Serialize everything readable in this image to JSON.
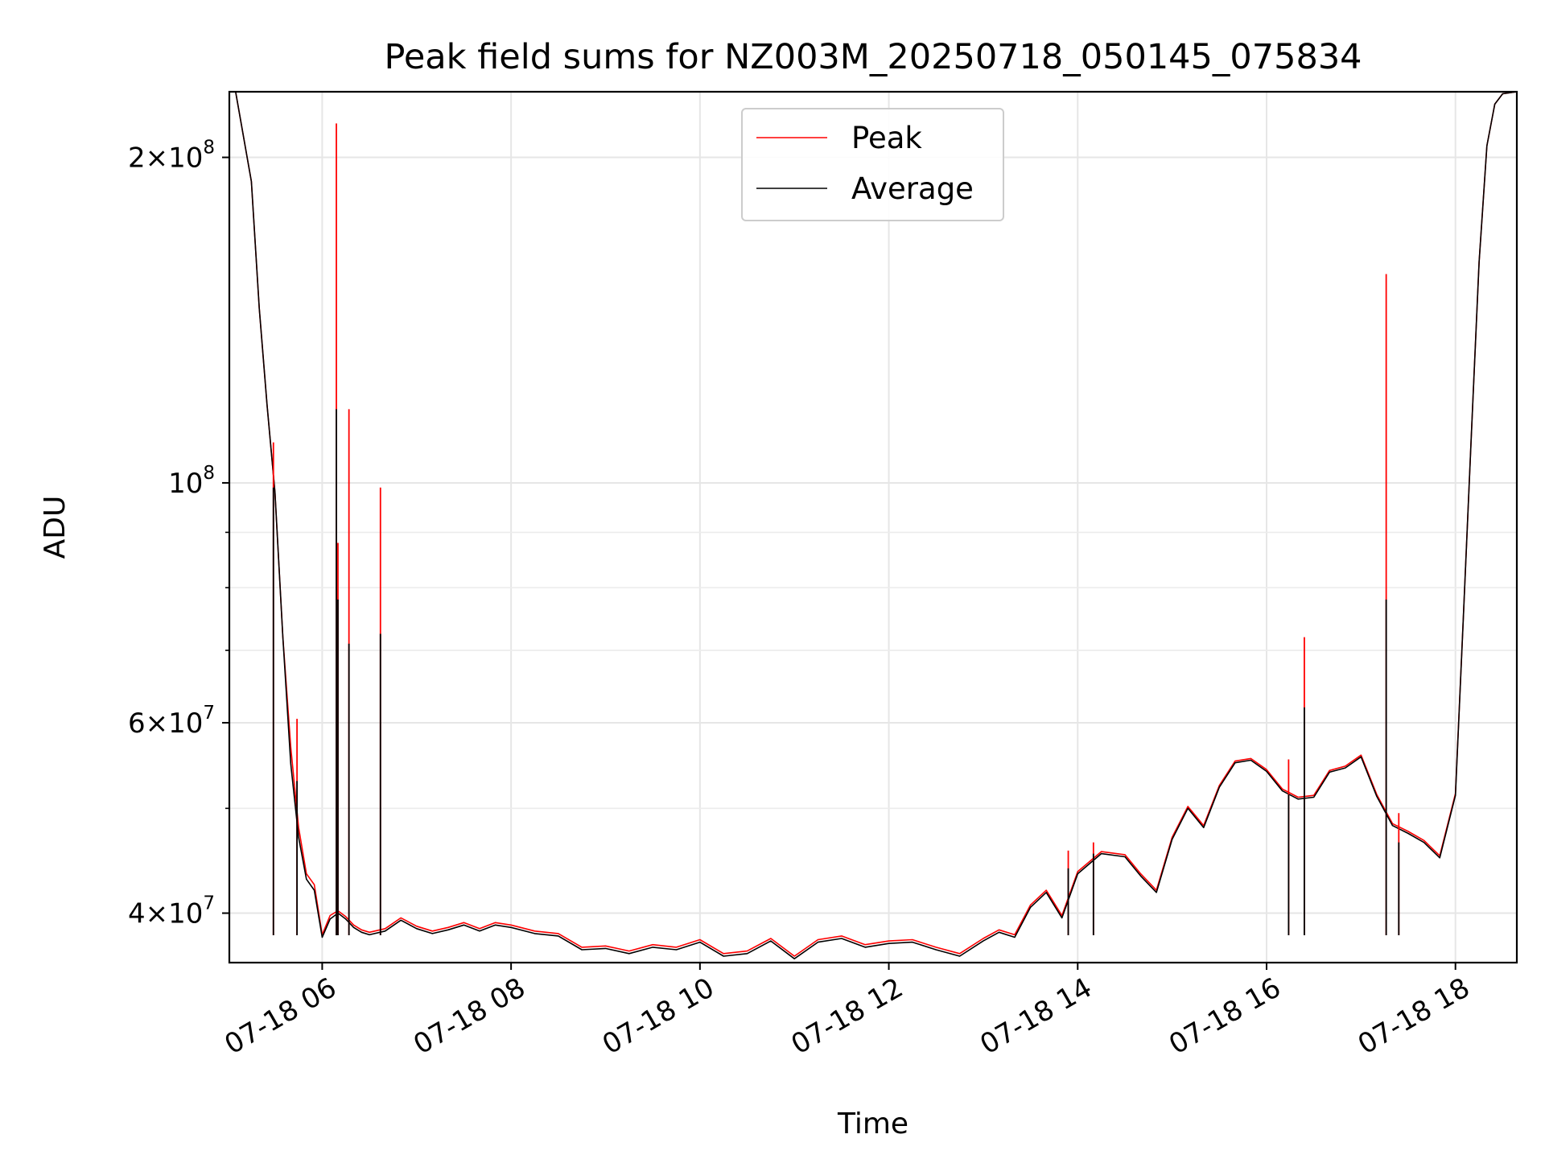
{
  "chart_data": {
    "type": "line",
    "title": "Peak field sums for NZ003M_20250718_050145_075834",
    "xlabel": "Time",
    "ylabel": "ADU",
    "yscale": "log",
    "ylim": [
      36000000,
      230000000
    ],
    "xlim": [
      "07-18 05:01",
      "07-18 18:39"
    ],
    "grid": true,
    "legend_placement": "upper-center",
    "x_tick_labels": [
      "07-18 06",
      "07-18 08",
      "07-18 10",
      "07-18 12",
      "07-18 14",
      "07-18 16",
      "07-18 18"
    ],
    "x_tick_values": [
      "07-18 06:00",
      "07-18 08:00",
      "07-18 10:00",
      "07-18 12:00",
      "07-18 14:00",
      "07-18 16:00",
      "07-18 18:00"
    ],
    "y_major_ticks": [
      {
        "value": 40000000,
        "mantissa": "4",
        "exponent": "7"
      },
      {
        "value": 60000000,
        "mantissa": "6",
        "exponent": "7"
      },
      {
        "value": 100000000,
        "mantissa": "",
        "exponent": "8"
      },
      {
        "value": 200000000,
        "mantissa": "2",
        "exponent": "8"
      }
    ],
    "y_minor_ticks": [
      50000000,
      70000000,
      80000000,
      90000000
    ],
    "x": [
      "07-18 05:01",
      "07-18 05:05",
      "07-18 05:15",
      "07-18 05:20",
      "07-18 05:25",
      "07-18 05:30",
      "07-18 05:35",
      "07-18 05:40",
      "07-18 05:45",
      "07-18 05:50",
      "07-18 05:55",
      "07-18 06:00",
      "07-18 06:05",
      "07-18 06:10",
      "07-18 06:15",
      "07-18 06:20",
      "07-18 06:25",
      "07-18 06:30",
      "07-18 06:40",
      "07-18 06:50",
      "07-18 07:00",
      "07-18 07:10",
      "07-18 07:20",
      "07-18 07:30",
      "07-18 07:40",
      "07-18 07:50",
      "07-18 08:00",
      "07-18 08:15",
      "07-18 08:30",
      "07-18 08:45",
      "07-18 09:00",
      "07-18 09:15",
      "07-18 09:30",
      "07-18 09:45",
      "07-18 10:00",
      "07-18 10:15",
      "07-18 10:30",
      "07-18 10:45",
      "07-18 11:00",
      "07-18 11:15",
      "07-18 11:30",
      "07-18 11:45",
      "07-18 12:00",
      "07-18 12:15",
      "07-18 12:30",
      "07-18 12:45",
      "07-18 13:00",
      "07-18 13:10",
      "07-18 13:20",
      "07-18 13:30",
      "07-18 13:40",
      "07-18 13:50",
      "07-18 14:00",
      "07-18 14:15",
      "07-18 14:30",
      "07-18 14:40",
      "07-18 14:50",
      "07-18 15:00",
      "07-18 15:10",
      "07-18 15:20",
      "07-18 15:30",
      "07-18 15:40",
      "07-18 15:50",
      "07-18 16:00",
      "07-18 16:10",
      "07-18 16:20",
      "07-18 16:30",
      "07-18 16:40",
      "07-18 16:50",
      "07-18 17:00",
      "07-18 17:10",
      "07-18 17:20",
      "07-18 17:30",
      "07-18 17:40",
      "07-18 17:50",
      "07-18 18:00",
      "07-18 18:05",
      "07-18 18:10",
      "07-18 18:15",
      "07-18 18:20",
      "07-18 18:25",
      "07-18 18:30",
      "07-18 18:39"
    ],
    "series": [
      {
        "name": "Peak",
        "color": "#ff0000",
        "values": [
          230000000,
          230000000,
          190000000,
          145000000,
          118000000,
          98000000,
          72000000,
          57000000,
          48000000,
          43500000,
          42500000,
          38200000,
          39800000,
          40200000,
          39700000,
          39000000,
          38600000,
          38400000,
          38700000,
          39600000,
          38900000,
          38500000,
          38800000,
          39200000,
          38700000,
          39200000,
          39000000,
          38500000,
          38300000,
          37200000,
          37300000,
          36900000,
          37400000,
          37200000,
          37800000,
          36700000,
          36900000,
          37900000,
          36500000,
          37800000,
          38100000,
          37400000,
          37700000,
          37800000,
          37200000,
          36700000,
          37900000,
          38600000,
          38200000,
          40700000,
          42000000,
          39800000,
          43700000,
          45600000,
          45300000,
          43500000,
          42000000,
          47000000,
          50200000,
          48200000,
          52500000,
          55300000,
          55600000,
          54300000,
          52100000,
          51200000,
          51400000,
          54200000,
          54700000,
          56000000,
          51500000,
          48400000,
          47600000,
          46700000,
          45200000,
          51600000,
          75000000,
          110000000,
          160000000,
          205000000,
          224000000,
          229000000,
          230000000
        ]
      },
      {
        "name": "Average",
        "color": "#000000",
        "values": [
          230000000,
          230000000,
          190000000,
          145000000,
          118000000,
          98000000,
          72000000,
          55000000,
          47000000,
          43000000,
          42000000,
          38000000,
          39500000,
          40000000,
          39500000,
          38800000,
          38400000,
          38200000,
          38500000,
          39400000,
          38700000,
          38300000,
          38600000,
          39000000,
          38500000,
          39000000,
          38800000,
          38300000,
          38100000,
          37000000,
          37100000,
          36700000,
          37200000,
          37000000,
          37600000,
          36500000,
          36700000,
          37700000,
          36300000,
          37600000,
          37900000,
          37200000,
          37500000,
          37600000,
          37000000,
          36500000,
          37700000,
          38400000,
          38000000,
          40500000,
          41800000,
          39600000,
          43500000,
          45400000,
          45100000,
          43300000,
          41800000,
          46800000,
          50000000,
          48000000,
          52300000,
          55100000,
          55400000,
          54100000,
          51900000,
          51000000,
          51200000,
          54000000,
          54500000,
          55800000,
          51300000,
          48200000,
          47400000,
          46500000,
          45000000,
          51400000,
          75000000,
          110000000,
          160000000,
          205000000,
          224000000,
          229000000,
          230000000
        ]
      }
    ],
    "peak_spikes": [
      {
        "x": "07-18 05:29",
        "peak": 109000000,
        "average": 99000000
      },
      {
        "x": "07-18 05:44",
        "peak": 60500000,
        "average": 53000000
      },
      {
        "x": "07-18 06:09",
        "peak": 215000000,
        "average": 117000000
      },
      {
        "x": "07-18 06:10",
        "peak": 88000000,
        "average": 78000000
      },
      {
        "x": "07-18 06:17",
        "peak": 117000000,
        "average": 71000000
      },
      {
        "x": "07-18 06:37",
        "peak": 99000000,
        "average": 72500000
      },
      {
        "x": "07-18 13:54",
        "peak": 45700000,
        "average": 44000000
      },
      {
        "x": "07-18 14:10",
        "peak": 46500000,
        "average": 45400000
      },
      {
        "x": "07-18 16:14",
        "peak": 55500000,
        "average": 51500000
      },
      {
        "x": "07-18 16:24",
        "peak": 72000000,
        "average": 62000000
      },
      {
        "x": "07-18 17:16",
        "peak": 156000000,
        "average": 78000000
      },
      {
        "x": "07-18 17:24",
        "peak": 49500000,
        "average": 46500000
      }
    ]
  }
}
